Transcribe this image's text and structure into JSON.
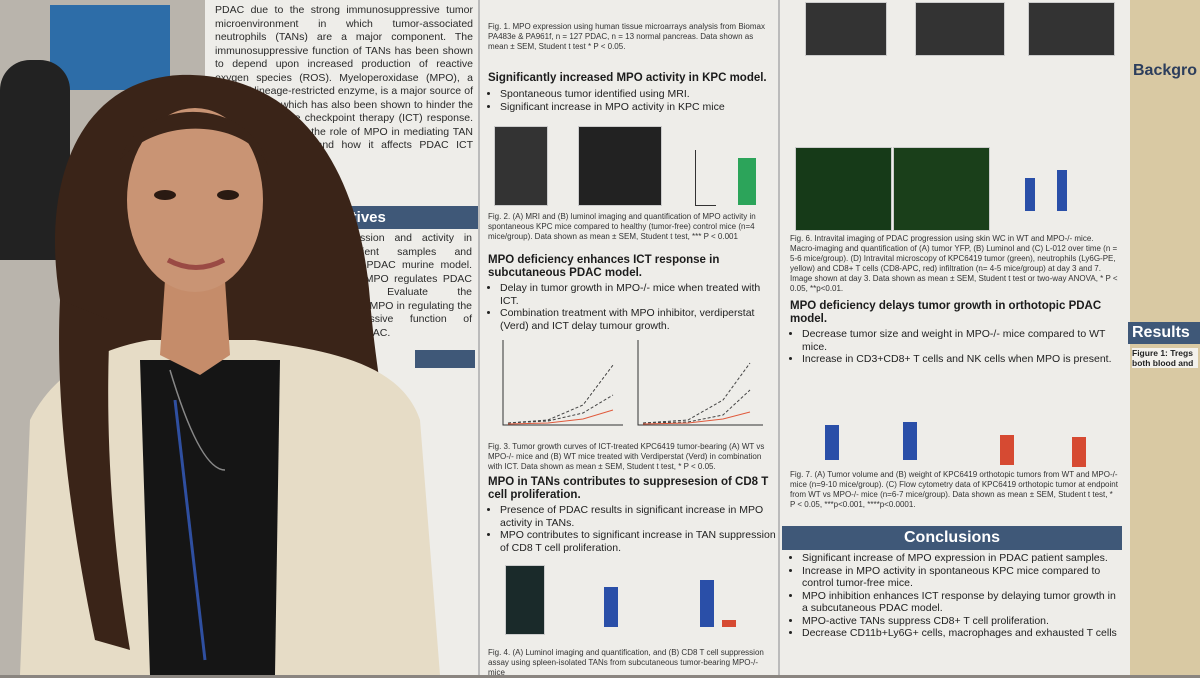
{
  "poster": {
    "left_text": "PDAC due to the strong immunosuppressive tumor microenvironment in which tumor-associated neutrophils (TANs) are a major component. The immunosuppressive function of TANs has been shown to depend upon increased production of reactive oxygen species (ROS). Myeloperoxidase (MPO), a myeloid lineage-restricted enzyme, is a major source of ROS in TANs which has also been shown to hinder the effects of immune checkpoint therapy (ICT) response. Here, we evaluated the role of MPO in mediating TAN immunosuppression and how it affects PDAC ICT response.",
    "objectives_title": "Objectives",
    "objectives_text": "MPO expression and activity in PDAC patient samples and spontaneous PDAC murine model. Determine if MPO regulates PDAC progression. Evaluate the contribution of MPO in regulating the immunosuppressive function of TANs within PDAC.",
    "fig1_caption": "Fig. 1. MPO expression using human tissue microarrays analysis from Biomax PA483e & PA961f, n = 127 PDAC, n = 13 normal pancreas. Data shown as mean ± SEM, Student t test * P < 0.05.",
    "section1": {
      "title": "Significantly increased MPO activity in KPC model.",
      "bullets": [
        "Spontaneous tumor identified using MRI.",
        "Significant increase in MPO activity in KPC mice"
      ]
    },
    "fig2_caption": "Fig. 2. (A) MRI and (B) luminol imaging and quantification of MPO activity in spontaneous KPC mice compared to healthy (tumor-free) control mice (n=4 mice/group). Data shown as mean ± SEM, Student t test, *** P < 0.001",
    "section2": {
      "title": "MPO deficiency enhances ICT response in subcutaneous PDAC model.",
      "bullets": [
        "Delay in tumor growth in MPO-/- mice when treated with ICT.",
        "Combination treatment with MPO inhibitor, verdiperstat (Verd) and ICT delay tumour growth."
      ]
    },
    "fig3_caption": "Fig. 3. Tumor growth curves of ICT-treated KPC6419 tumor-bearing (A) WT vs MPO-/- mice and (B) WT mice treated with Verdiperstat (Verd) in combination with ICT. Data shown as mean ± SEM, Student t test, * P < 0.05.",
    "section3": {
      "title": "MPO in TANs contributes to suppresesion of CD8 T cell proliferation.",
      "bullets": [
        "Presence of PDAC results in significant increase in MPO activity in TANs.",
        "MPO contributes to significant increase in TAN suppression of CD8 T cell proliferation."
      ]
    },
    "fig4_caption": "Fig. 4. (A) Luminol imaging and quantification, and (B) CD8 T cell suppression assay using spleen-isolated TANs from subcutaneous tumor-bearing MPO-/- mice",
    "fig6_caption": "Fig. 6. Intravital imaging of PDAC progression using skin WC in WT and MPO-/- mice. Macro-imaging and quantification of (A) tumor YFP, (B) Luminol and (C) L-012 over time (n = 5-6 mice/group). (D) Intravital microscopy of KPC6419 tumor (green), neutrophils (Ly6G-PE, yellow) and CD8+ T cells (CD8-APC, red) infiltration (n= 4-5 mice/group) at day 3 and 7. Image shown at day 3. Data shown as mean ± SEM, Student t test or two-way ANOVA, * P < 0.05, **p<0.01.",
    "section4": {
      "title": "MPO deficiency delays tumor growth in orthotopic PDAC model.",
      "bullets": [
        "Decrease tumor size and weight in MPO-/- mice compared to WT mice.",
        "Increase in CD3+CD8+ T cells and NK cells when MPO is present."
      ]
    },
    "fig7_caption": "Fig. 7. (A) Tumor volume and (B) weight of KPC6419 orthotopic tumors from WT and MPO-/- mice (n=9-10 mice/group). (C) Flow cytometry data of KPC6419 orthotopic tumor at endpoint from WT vs MPO-/- mice (n=6-7 mice/group). Data shown as mean ± SEM, Student t test, * P < 0.05, ***p<0.001, ****p<0.0001.",
    "conclusions": {
      "title": "Conclusions",
      "bullets": [
        "Significant increase of MPO expression in PDAC patient samples.",
        "Increase in MPO activity in spontaneous KPC mice compared to control tumor-free mice.",
        "MPO inhibition enhances ICT response by delaying tumor growth in a subcutaneous PDAC model.",
        "MPO-active TANs suppress CD8+ T cell proliferation.",
        "Decrease CD11b+Ly6G+ cells, macrophages and exhausted T cells"
      ]
    },
    "background_title": "Backgro",
    "results_title": "Results",
    "results_fig": "Figure 1: Tregs both blood and"
  }
}
